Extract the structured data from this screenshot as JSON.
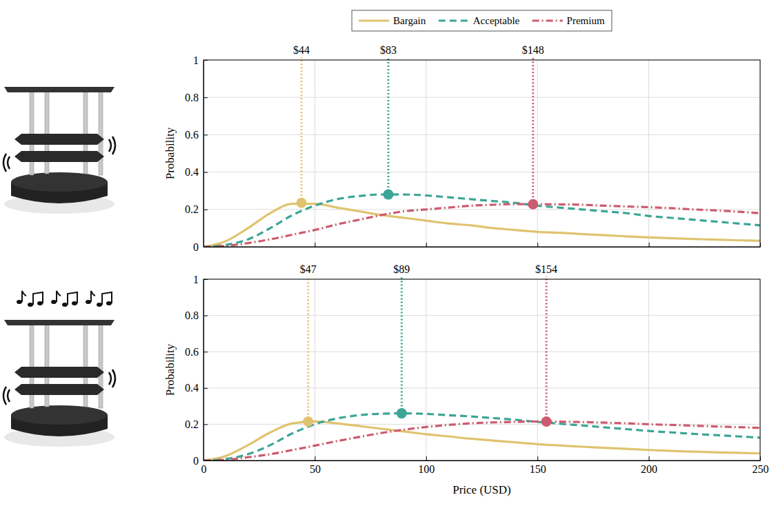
{
  "chart_data": [
    {
      "type": "line",
      "legend": "top",
      "grid": true,
      "tick_labels": "y",
      "y_label": "Probability",
      "xlim": [
        0,
        250
      ],
      "ylim": [
        0,
        1
      ],
      "xticks": [
        0,
        50,
        100,
        150,
        200,
        250
      ],
      "yticks": [
        0,
        0.2,
        0.4,
        0.6,
        0.8,
        1
      ],
      "x": [
        0,
        10,
        20,
        30,
        40,
        50,
        60,
        70,
        80,
        90,
        100,
        110,
        120,
        130,
        140,
        150,
        160,
        170,
        180,
        190,
        200,
        210,
        220,
        230,
        240,
        250
      ],
      "series": [
        {
          "name": "Bargain",
          "color": "#dfc36e",
          "line_style": "solid",
          "values": [
            0,
            0.03,
            0.1,
            0.18,
            0.23,
            0.23,
            0.21,
            0.19,
            0.17,
            0.155,
            0.14,
            0.125,
            0.115,
            0.1,
            0.09,
            0.08,
            0.075,
            0.068,
            0.062,
            0.056,
            0.05,
            0.046,
            0.042,
            0.038,
            0.035,
            0.032
          ],
          "peak": 44,
          "peak_value": 0.235,
          "peak_label": "$44"
        },
        {
          "name": "Acceptable",
          "color": "#3ba596",
          "line_style": "dashed",
          "values": [
            0,
            0.01,
            0.04,
            0.1,
            0.17,
            0.22,
            0.255,
            0.272,
            0.28,
            0.28,
            0.275,
            0.265,
            0.255,
            0.245,
            0.235,
            0.22,
            0.21,
            0.2,
            0.19,
            0.18,
            0.165,
            0.155,
            0.145,
            0.135,
            0.125,
            0.115
          ],
          "peak": 83,
          "peak_value": 0.28,
          "peak_label": "$83"
        },
        {
          "name": "Premium",
          "color": "#cc5b6e",
          "line_style": "dashdot",
          "values": [
            0,
            0.005,
            0.02,
            0.04,
            0.065,
            0.09,
            0.12,
            0.145,
            0.17,
            0.19,
            0.2,
            0.21,
            0.22,
            0.225,
            0.228,
            0.228,
            0.227,
            0.225,
            0.22,
            0.216,
            0.212,
            0.207,
            0.2,
            0.195,
            0.188,
            0.18
          ],
          "peak": 148,
          "peak_value": 0.228,
          "peak_label": "$148"
        }
      ]
    },
    {
      "type": "line",
      "grid": true,
      "y_label": "Probability",
      "x_label": "Price (USD)",
      "xlim": [
        0,
        250
      ],
      "ylim": [
        0,
        1
      ],
      "xticks": [
        0,
        50,
        100,
        150,
        200,
        250
      ],
      "yticks": [
        0,
        0.2,
        0.4,
        0.6,
        0.8,
        1
      ],
      "x": [
        0,
        10,
        20,
        30,
        40,
        50,
        60,
        70,
        80,
        90,
        100,
        110,
        120,
        130,
        140,
        150,
        160,
        170,
        180,
        190,
        200,
        210,
        220,
        230,
        240,
        250
      ],
      "series": [
        {
          "color": "#dfc36e",
          "line_style": "solid",
          "values": [
            0,
            0.025,
            0.085,
            0.155,
            0.205,
            0.215,
            0.205,
            0.19,
            0.175,
            0.16,
            0.145,
            0.133,
            0.12,
            0.11,
            0.1,
            0.09,
            0.083,
            0.076,
            0.07,
            0.064,
            0.058,
            0.053,
            0.049,
            0.045,
            0.042,
            0.039
          ],
          "peak": 47,
          "peak_value": 0.215,
          "peak_label": "$47"
        },
        {
          "color": "#3ba596",
          "line_style": "dashed",
          "values": [
            0,
            0.008,
            0.035,
            0.085,
            0.15,
            0.2,
            0.232,
            0.25,
            0.258,
            0.26,
            0.257,
            0.25,
            0.243,
            0.234,
            0.225,
            0.213,
            0.203,
            0.193,
            0.183,
            0.173,
            0.163,
            0.155,
            0.147,
            0.14,
            0.133,
            0.126
          ],
          "peak": 89,
          "peak_value": 0.26,
          "peak_label": "$89"
        },
        {
          "color": "#cc5b6e",
          "line_style": "dashdot",
          "values": [
            0,
            0.004,
            0.018,
            0.035,
            0.058,
            0.082,
            0.107,
            0.13,
            0.152,
            0.17,
            0.185,
            0.196,
            0.205,
            0.21,
            0.213,
            0.215,
            0.214,
            0.212,
            0.209,
            0.205,
            0.2,
            0.196,
            0.192,
            0.188,
            0.184,
            0.18
          ],
          "peak": 154,
          "peak_value": 0.215,
          "peak_label": "$154"
        }
      ]
    }
  ]
}
